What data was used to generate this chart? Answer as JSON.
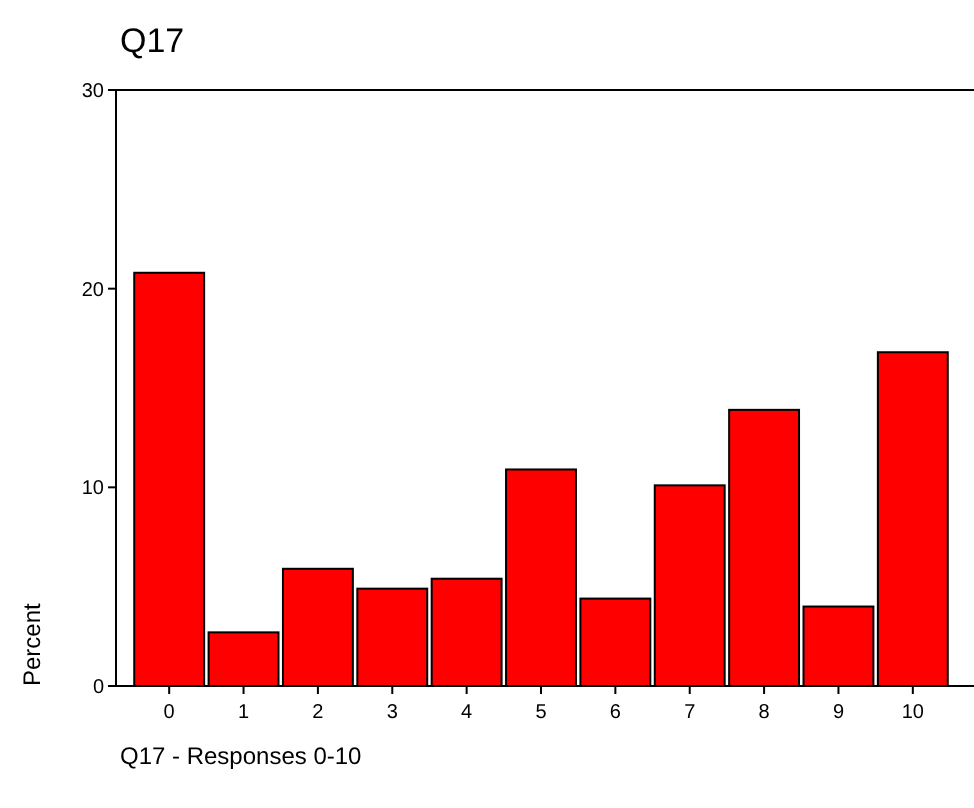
{
  "chart_data": {
    "type": "bar",
    "title": "Q17",
    "xlabel": "Q17 - Responses 0-10",
    "ylabel": "Percent",
    "categories": [
      "0",
      "1",
      "2",
      "3",
      "4",
      "5",
      "6",
      "7",
      "8",
      "9",
      "10"
    ],
    "values": [
      20.8,
      2.7,
      5.9,
      4.9,
      5.4,
      10.9,
      4.4,
      10.1,
      13.9,
      4.0,
      16.8
    ],
    "color": "#ff0000",
    "ylim": [
      0,
      30
    ],
    "yticks": [
      0,
      10,
      20,
      30
    ],
    "grid": false
  }
}
